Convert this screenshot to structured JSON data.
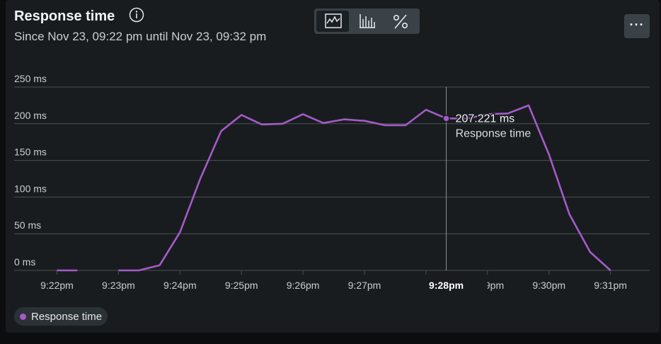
{
  "header": {
    "title": "Response time",
    "subtitle": "Since Nov 23, 09:22 pm until Nov 23, 09:32 pm"
  },
  "icons": {
    "info": "info-icon",
    "line_view": "line-chart-icon",
    "bar_view": "bar-chart-icon",
    "percent_view": "percent-icon",
    "menu": "more-horizontal-icon"
  },
  "menu_label": "···",
  "tooltip": {
    "value": "207.221 ms",
    "series": "Response time",
    "x_label": "9:28pm"
  },
  "legend": {
    "label": "Response time"
  },
  "colors": {
    "series": "#a45bc7",
    "grid": "#4a5055",
    "text": "#c9ced2"
  },
  "chart_data": {
    "type": "line",
    "title": "Response time",
    "ylim": [
      0,
      250
    ],
    "y_ticks": [
      {
        "value": 0,
        "label": "0 ms"
      },
      {
        "value": 50,
        "label": "50 ms"
      },
      {
        "value": 100,
        "label": "100 ms"
      },
      {
        "value": 150,
        "label": "150 ms"
      },
      {
        "value": 200,
        "label": "200 ms"
      },
      {
        "value": 250,
        "label": "250 ms"
      }
    ],
    "x_ticks": [
      {
        "value": 0,
        "label": "9:22pm"
      },
      {
        "value": 1,
        "label": "9:23pm"
      },
      {
        "value": 2,
        "label": "9:24pm"
      },
      {
        "value": 3,
        "label": "9:25pm"
      },
      {
        "value": 4,
        "label": "9:26pm"
      },
      {
        "value": 5,
        "label": "9:27pm"
      },
      {
        "value": 6,
        "label": "9:28pm"
      },
      {
        "value": 7,
        "label": "9:29pm"
      },
      {
        "value": 8,
        "label": "9:30pm"
      },
      {
        "value": 9,
        "label": "9:31pm"
      }
    ],
    "grid": true,
    "legend_position": "bottom-left",
    "series": [
      {
        "name": "Response time",
        "segments": [
          {
            "x": [
              0,
              0.33
            ],
            "y": [
              0,
              0
            ]
          },
          {
            "x": [
              1,
              1.33,
              1.67,
              2,
              2.33,
              2.67,
              3,
              3.33,
              3.67,
              4,
              4.33,
              4.67,
              5,
              5.33,
              5.67,
              6,
              6.33,
              6.67,
              7,
              7.33,
              7.67,
              8,
              8.33,
              8.67,
              9
            ],
            "y": [
              0,
              0,
              7,
              52,
              125,
              190,
              212,
              199,
              200,
              213,
              201,
              206,
              204,
              198,
              198,
              219,
              207.221,
              207,
              213,
              214,
              225,
              158,
              77,
              25,
              0
            ]
          }
        ]
      }
    ],
    "highlight": {
      "x": 6.33,
      "y": 207.221
    }
  }
}
